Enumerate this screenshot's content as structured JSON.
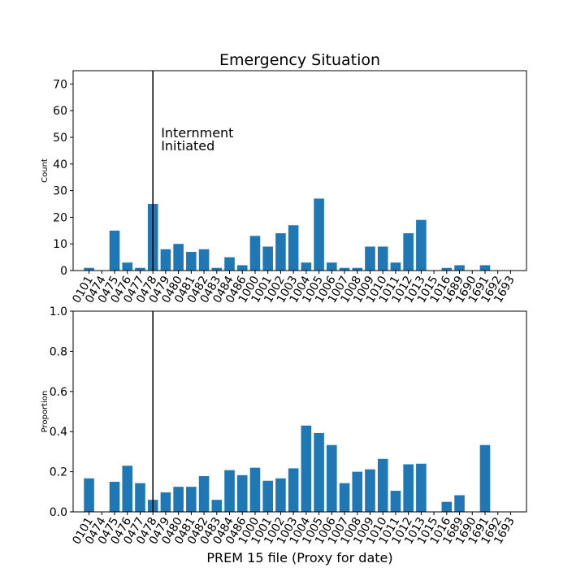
{
  "chart_data": {
    "type": "bar",
    "title": "Emergency Situation",
    "xlabel": "PREM 15 file (Proxy for date)",
    "categories": [
      "0101",
      "0474",
      "0475",
      "0476",
      "0477",
      "0478",
      "0479",
      "0480",
      "0481",
      "0482",
      "0483",
      "0484",
      "0486",
      "1000",
      "1001",
      "1002",
      "1003",
      "1004",
      "1005",
      "1006",
      "1007",
      "1008",
      "1009",
      "1010",
      "1011",
      "1012",
      "1013",
      "1015",
      "1016",
      "1689",
      "1690",
      "1691",
      "1692",
      "1693"
    ],
    "bar_color": "#1f77b4",
    "vline": {
      "category": "0478",
      "label_line1": "Internment",
      "label_line2": "Initiated"
    },
    "panels": [
      {
        "ylabel": "Count",
        "ylim": [
          0,
          75
        ],
        "yticks": [
          0,
          10,
          20,
          30,
          40,
          50,
          60,
          70
        ],
        "values": [
          1,
          0,
          15,
          3,
          1,
          25,
          8,
          10,
          7,
          8,
          1,
          5,
          2,
          13,
          9,
          14,
          17,
          3,
          27,
          3,
          1,
          1,
          9,
          9,
          3,
          14,
          19,
          0,
          1,
          2,
          0,
          2,
          0,
          0
        ],
        "show_annotation": true
      },
      {
        "ylabel": "Proportion",
        "ylim": [
          0,
          1.0
        ],
        "yticks": [
          "0.0",
          "0.2",
          "0.4",
          "0.6",
          "0.8",
          "1.0"
        ],
        "values": [
          0.167,
          0,
          0.15,
          0.23,
          0.143,
          0.06,
          0.097,
          0.125,
          0.125,
          0.178,
          0.06,
          0.208,
          0.183,
          0.22,
          0.155,
          0.167,
          0.217,
          0.43,
          0.393,
          0.333,
          0.143,
          0.2,
          0.212,
          0.264,
          0.105,
          0.237,
          0.24,
          0,
          0.05,
          0.083,
          0,
          0.333,
          0,
          0
        ],
        "show_annotation": false
      }
    ]
  }
}
